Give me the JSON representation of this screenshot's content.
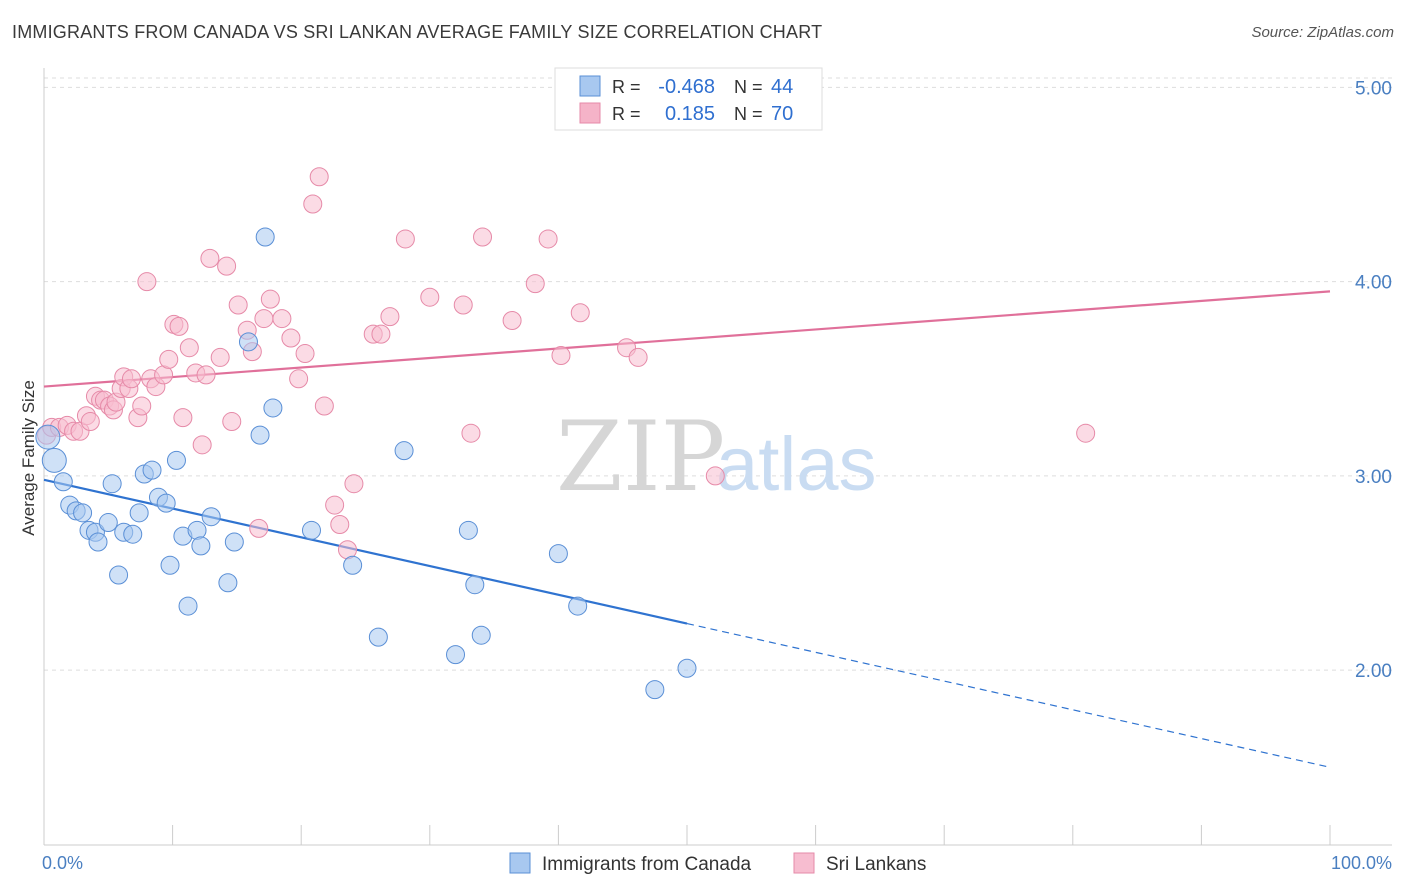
{
  "header": {
    "title": "IMMIGRANTS FROM CANADA VS SRI LANKAN AVERAGE FAMILY SIZE CORRELATION CHART",
    "source": "Source: ZipAtlas.com"
  },
  "watermark": {
    "part1": "ZIP",
    "part2": "atlas"
  },
  "legend": {
    "rows": [
      {
        "r_label": "R =",
        "r_value": "-0.468",
        "n_label": "N =",
        "n_value": "44",
        "color": "#a8c8f0"
      },
      {
        "r_label": "R =",
        "r_value": "0.185",
        "n_label": "N =",
        "n_value": "70",
        "color": "#f5b3c8"
      }
    ]
  },
  "colors": {
    "series1_fill": "#a8c8f0",
    "series1_stroke": "#5a8fd6",
    "series1_line": "#2f73d0",
    "series2_fill": "#f7bdd0",
    "series2_stroke": "#e68aa8",
    "series2_line": "#e0709a",
    "tick_text": "#4a7fc1",
    "grid": "#dddddd"
  },
  "chart_data": {
    "type": "scatter",
    "title": "IMMIGRANTS FROM CANADA VS SRI LANKAN AVERAGE FAMILY SIZE CORRELATION CHART",
    "xlabel": "",
    "ylabel": "Average Family Size",
    "xlim": [
      0,
      100
    ],
    "ylim": [
      1.1,
      5.1
    ],
    "x_tick_labels": [
      "0.0%",
      "100.0%"
    ],
    "y_ticks": [
      2.0,
      3.0,
      4.0,
      5.0
    ],
    "y_tick_labels": [
      "2.00",
      "3.00",
      "4.00",
      "5.00"
    ],
    "grid": "horizontal dashed",
    "legend_position": "bottom-center",
    "series": [
      {
        "name": "Immigrants from Canada",
        "r": -0.468,
        "n": 44,
        "trend": {
          "x0": 0,
          "y0": 2.98,
          "x1": 50,
          "y1": 2.24,
          "dashed_to_x": 100,
          "dashed_to_y": 1.5
        },
        "points": [
          [
            0.3,
            3.2
          ],
          [
            0.8,
            3.08
          ],
          [
            1.5,
            2.97
          ],
          [
            2.0,
            2.85
          ],
          [
            2.5,
            2.82
          ],
          [
            3.0,
            2.81
          ],
          [
            3.5,
            2.72
          ],
          [
            4.0,
            2.71
          ],
          [
            4.2,
            2.66
          ],
          [
            5.0,
            2.76
          ],
          [
            5.3,
            2.96
          ],
          [
            5.8,
            2.49
          ],
          [
            6.2,
            2.71
          ],
          [
            6.9,
            2.7
          ],
          [
            7.4,
            2.81
          ],
          [
            7.8,
            3.01
          ],
          [
            8.4,
            3.03
          ],
          [
            8.9,
            2.89
          ],
          [
            9.5,
            2.86
          ],
          [
            9.8,
            2.54
          ],
          [
            10.3,
            3.08
          ],
          [
            10.8,
            2.69
          ],
          [
            11.2,
            2.33
          ],
          [
            11.9,
            2.72
          ],
          [
            12.2,
            2.64
          ],
          [
            13.0,
            2.79
          ],
          [
            14.3,
            2.45
          ],
          [
            14.8,
            2.66
          ],
          [
            15.9,
            3.69
          ],
          [
            16.8,
            3.21
          ],
          [
            17.2,
            4.23
          ],
          [
            17.8,
            3.35
          ],
          [
            20.8,
            2.72
          ],
          [
            24.0,
            2.54
          ],
          [
            26.0,
            2.17
          ],
          [
            28.0,
            3.13
          ],
          [
            32.0,
            2.08
          ],
          [
            33.0,
            2.72
          ],
          [
            33.5,
            2.44
          ],
          [
            34.0,
            2.18
          ],
          [
            40.0,
            2.6
          ],
          [
            41.5,
            2.33
          ],
          [
            47.5,
            1.9
          ],
          [
            50.0,
            2.01
          ]
        ]
      },
      {
        "name": "Sri Lankans",
        "r": 0.185,
        "n": 70,
        "trend": {
          "x0": 0,
          "y0": 3.46,
          "x1": 100,
          "y1": 3.95
        },
        "points": [
          [
            0.2,
            3.21
          ],
          [
            0.6,
            3.25
          ],
          [
            1.2,
            3.25
          ],
          [
            1.8,
            3.26
          ],
          [
            2.3,
            3.23
          ],
          [
            2.8,
            3.23
          ],
          [
            3.3,
            3.31
          ],
          [
            3.6,
            3.28
          ],
          [
            4.0,
            3.41
          ],
          [
            4.4,
            3.39
          ],
          [
            4.7,
            3.39
          ],
          [
            5.1,
            3.36
          ],
          [
            5.4,
            3.34
          ],
          [
            5.6,
            3.38
          ],
          [
            6.0,
            3.45
          ],
          [
            6.2,
            3.51
          ],
          [
            6.6,
            3.45
          ],
          [
            6.8,
            3.5
          ],
          [
            7.3,
            3.3
          ],
          [
            7.6,
            3.36
          ],
          [
            8.0,
            4.0
          ],
          [
            8.3,
            3.5
          ],
          [
            8.7,
            3.46
          ],
          [
            9.3,
            3.52
          ],
          [
            9.7,
            3.6
          ],
          [
            10.1,
            3.78
          ],
          [
            10.5,
            3.77
          ],
          [
            10.8,
            3.3
          ],
          [
            11.3,
            3.66
          ],
          [
            11.8,
            3.53
          ],
          [
            12.3,
            3.16
          ],
          [
            12.6,
            3.52
          ],
          [
            12.9,
            4.12
          ],
          [
            13.7,
            3.61
          ],
          [
            14.2,
            4.08
          ],
          [
            14.6,
            3.28
          ],
          [
            15.1,
            3.88
          ],
          [
            15.8,
            3.75
          ],
          [
            16.2,
            3.64
          ],
          [
            16.7,
            2.73
          ],
          [
            17.1,
            3.81
          ],
          [
            17.6,
            3.91
          ],
          [
            18.5,
            3.81
          ],
          [
            19.2,
            3.71
          ],
          [
            19.8,
            3.5
          ],
          [
            20.3,
            3.63
          ],
          [
            20.9,
            4.4
          ],
          [
            21.4,
            4.54
          ],
          [
            21.8,
            3.36
          ],
          [
            22.6,
            2.85
          ],
          [
            23.0,
            2.75
          ],
          [
            23.6,
            2.62
          ],
          [
            24.1,
            2.96
          ],
          [
            25.6,
            3.73
          ],
          [
            26.2,
            3.73
          ],
          [
            26.9,
            3.82
          ],
          [
            28.1,
            4.22
          ],
          [
            30.0,
            3.92
          ],
          [
            32.6,
            3.88
          ],
          [
            33.2,
            3.22
          ],
          [
            34.1,
            4.23
          ],
          [
            36.4,
            3.8
          ],
          [
            38.2,
            3.99
          ],
          [
            39.2,
            4.22
          ],
          [
            40.2,
            3.62
          ],
          [
            41.7,
            3.84
          ],
          [
            45.3,
            3.66
          ],
          [
            46.2,
            3.61
          ],
          [
            52.2,
            3.0
          ],
          [
            81.0,
            3.22
          ]
        ]
      }
    ]
  }
}
